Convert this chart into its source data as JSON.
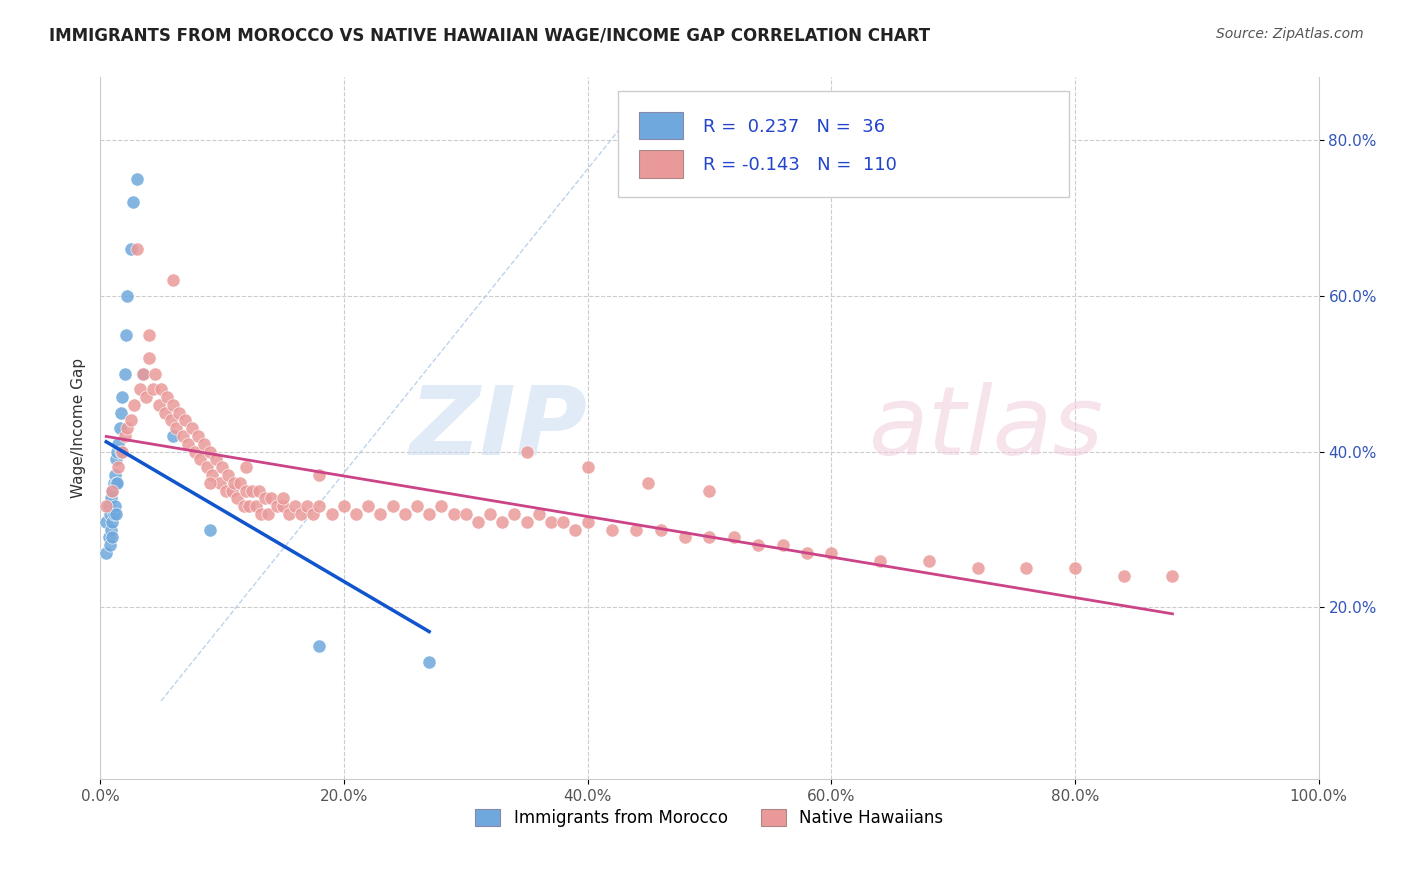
{
  "title": "IMMIGRANTS FROM MOROCCO VS NATIVE HAWAIIAN WAGE/INCOME GAP CORRELATION CHART",
  "source": "Source: ZipAtlas.com",
  "ylabel": "Wage/Income Gap",
  "xlim": [
    0.0,
    1.0
  ],
  "ylim": [
    -0.02,
    0.88
  ],
  "x_ticks": [
    0.0,
    0.2,
    0.4,
    0.6,
    0.8,
    1.0
  ],
  "x_tick_labels": [
    "0.0%",
    "20.0%",
    "40.0%",
    "60.0%",
    "80.0%",
    "100.0%"
  ],
  "y_ticks": [
    0.2,
    0.4,
    0.6,
    0.8
  ],
  "y_tick_labels": [
    "20.0%",
    "40.0%",
    "60.0%",
    "80.0%"
  ],
  "legend_labels": [
    "Immigrants from Morocco",
    "Native Hawaiians"
  ],
  "blue_color": "#6fa8dc",
  "pink_color": "#ea9999",
  "blue_line_color": "#1155cc",
  "pink_line_color": "#cc4488",
  "diagonal_line_color": "#adc8e8",
  "r_blue": "0.237",
  "n_blue": "36",
  "r_pink": "-0.143",
  "n_pink": "110",
  "blue_scatter_x": [
    0.005,
    0.005,
    0.007,
    0.007,
    0.008,
    0.008,
    0.009,
    0.009,
    0.01,
    0.01,
    0.01,
    0.011,
    0.011,
    0.012,
    0.012,
    0.013,
    0.013,
    0.013,
    0.014,
    0.014,
    0.015,
    0.016,
    0.017,
    0.017,
    0.018,
    0.02,
    0.021,
    0.022,
    0.025,
    0.027,
    0.03,
    0.035,
    0.06,
    0.09,
    0.18,
    0.27
  ],
  "blue_scatter_y": [
    0.31,
    0.27,
    0.33,
    0.29,
    0.32,
    0.28,
    0.34,
    0.3,
    0.35,
    0.31,
    0.29,
    0.36,
    0.32,
    0.37,
    0.33,
    0.39,
    0.36,
    0.32,
    0.4,
    0.36,
    0.41,
    0.43,
    0.45,
    0.4,
    0.47,
    0.5,
    0.55,
    0.6,
    0.66,
    0.72,
    0.75,
    0.5,
    0.42,
    0.3,
    0.15,
    0.13
  ],
  "pink_scatter_x": [
    0.005,
    0.01,
    0.015,
    0.018,
    0.02,
    0.022,
    0.025,
    0.028,
    0.03,
    0.033,
    0.035,
    0.038,
    0.04,
    0.043,
    0.045,
    0.048,
    0.05,
    0.053,
    0.055,
    0.058,
    0.06,
    0.062,
    0.065,
    0.068,
    0.07,
    0.072,
    0.075,
    0.078,
    0.08,
    0.082,
    0.085,
    0.088,
    0.09,
    0.092,
    0.095,
    0.098,
    0.1,
    0.103,
    0.105,
    0.108,
    0.11,
    0.112,
    0.115,
    0.118,
    0.12,
    0.122,
    0.125,
    0.128,
    0.13,
    0.132,
    0.135,
    0.138,
    0.14,
    0.145,
    0.15,
    0.155,
    0.16,
    0.165,
    0.17,
    0.175,
    0.18,
    0.19,
    0.2,
    0.21,
    0.22,
    0.23,
    0.24,
    0.25,
    0.26,
    0.27,
    0.28,
    0.29,
    0.3,
    0.31,
    0.32,
    0.33,
    0.34,
    0.35,
    0.36,
    0.37,
    0.38,
    0.39,
    0.4,
    0.42,
    0.44,
    0.46,
    0.48,
    0.5,
    0.52,
    0.54,
    0.56,
    0.58,
    0.6,
    0.64,
    0.68,
    0.72,
    0.76,
    0.8,
    0.84,
    0.88,
    0.04,
    0.06,
    0.09,
    0.12,
    0.15,
    0.18,
    0.35,
    0.4,
    0.45,
    0.5
  ],
  "pink_scatter_y": [
    0.33,
    0.35,
    0.38,
    0.4,
    0.42,
    0.43,
    0.44,
    0.46,
    0.66,
    0.48,
    0.5,
    0.47,
    0.52,
    0.48,
    0.5,
    0.46,
    0.48,
    0.45,
    0.47,
    0.44,
    0.46,
    0.43,
    0.45,
    0.42,
    0.44,
    0.41,
    0.43,
    0.4,
    0.42,
    0.39,
    0.41,
    0.38,
    0.4,
    0.37,
    0.39,
    0.36,
    0.38,
    0.35,
    0.37,
    0.35,
    0.36,
    0.34,
    0.36,
    0.33,
    0.35,
    0.33,
    0.35,
    0.33,
    0.35,
    0.32,
    0.34,
    0.32,
    0.34,
    0.33,
    0.33,
    0.32,
    0.33,
    0.32,
    0.33,
    0.32,
    0.33,
    0.32,
    0.33,
    0.32,
    0.33,
    0.32,
    0.33,
    0.32,
    0.33,
    0.32,
    0.33,
    0.32,
    0.32,
    0.31,
    0.32,
    0.31,
    0.32,
    0.31,
    0.32,
    0.31,
    0.31,
    0.3,
    0.31,
    0.3,
    0.3,
    0.3,
    0.29,
    0.29,
    0.29,
    0.28,
    0.28,
    0.27,
    0.27,
    0.26,
    0.26,
    0.25,
    0.25,
    0.25,
    0.24,
    0.24,
    0.55,
    0.62,
    0.36,
    0.38,
    0.34,
    0.37,
    0.4,
    0.38,
    0.36,
    0.35
  ]
}
